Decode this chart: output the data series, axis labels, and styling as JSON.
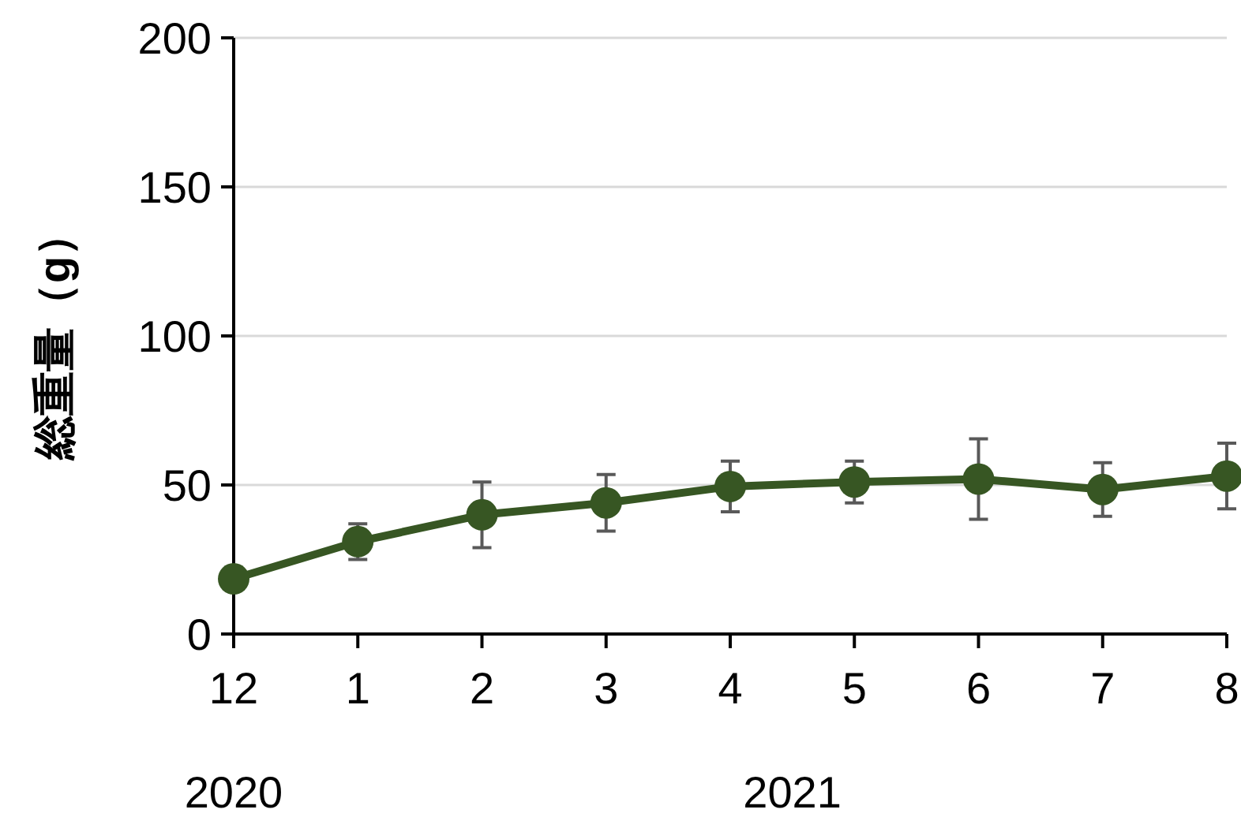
{
  "chart_data": {
    "type": "line",
    "ylabel": "総重量（g）",
    "categories": [
      "12",
      "1",
      "2",
      "3",
      "4",
      "5",
      "6",
      "7",
      "8"
    ],
    "series": [
      {
        "color": "#375623",
        "values": [
          18.5,
          31,
          40,
          44,
          49.5,
          51,
          52,
          48.5,
          53
        ],
        "errors": [
          null,
          6,
          11,
          9.5,
          8.5,
          7,
          13.5,
          9,
          11
        ]
      }
    ],
    "ylim": [
      0,
      200
    ],
    "yticks": [
      0,
      50,
      100,
      150,
      200
    ],
    "grid": "y",
    "marker": "circle",
    "line_style": "solid",
    "annotations": [
      "2020",
      "2021"
    ]
  }
}
